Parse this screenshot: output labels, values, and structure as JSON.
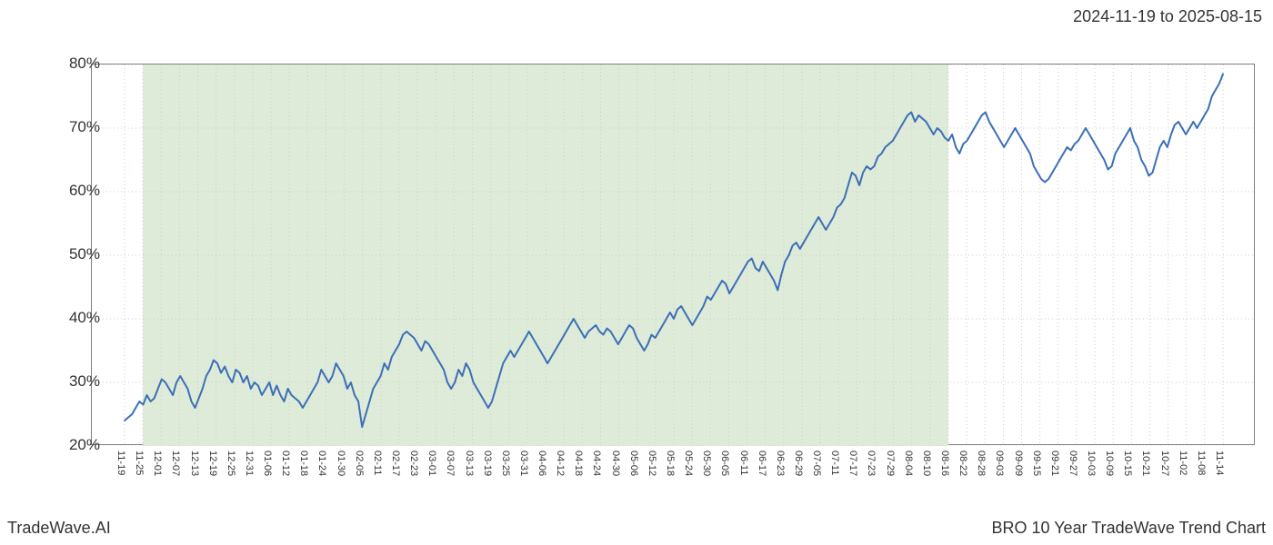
{
  "date_range": "2024-11-19 to 2025-08-15",
  "footer_left": "TradeWave.AI",
  "footer_right": "BRO 10 Year TradeWave Trend Chart",
  "chart": {
    "type": "line",
    "line_color": "#3b6fb6",
    "line_width": 2,
    "background_color": "#ffffff",
    "highlight_color": "#deebd9",
    "grid_color": "#cccccc",
    "border_color": "#808080",
    "text_color": "#333333",
    "ylim": [
      20,
      80
    ],
    "ytick_step": 10,
    "y_labels": [
      "20%",
      "30%",
      "40%",
      "50%",
      "60%",
      "70%",
      "80%"
    ],
    "x_labels": [
      "11-19",
      "11-25",
      "12-01",
      "12-07",
      "12-13",
      "12-19",
      "12-25",
      "12-31",
      "01-06",
      "01-12",
      "01-18",
      "01-24",
      "01-30",
      "02-05",
      "02-11",
      "02-17",
      "02-23",
      "03-01",
      "03-07",
      "03-13",
      "03-19",
      "03-25",
      "03-31",
      "04-06",
      "04-12",
      "04-18",
      "04-24",
      "04-30",
      "05-06",
      "05-12",
      "05-18",
      "05-24",
      "05-30",
      "06-05",
      "06-11",
      "06-17",
      "06-23",
      "06-29",
      "07-05",
      "07-11",
      "07-17",
      "07-23",
      "07-29",
      "08-04",
      "08-10",
      "08-16",
      "08-22",
      "08-28",
      "09-03",
      "09-09",
      "09-15",
      "09-21",
      "09-27",
      "10-03",
      "10-09",
      "10-15",
      "10-21",
      "10-27",
      "11-02",
      "11-08",
      "11-14"
    ],
    "highlight_start_index": 1,
    "highlight_end_index": 45,
    "plot_left_pad": 36,
    "plot_right_pad": 36,
    "values": [
      24,
      24.5,
      25,
      26,
      27,
      26.5,
      28,
      27,
      27.5,
      29,
      30.5,
      30,
      29,
      28,
      30,
      31,
      30,
      29,
      27,
      26,
      27.5,
      29,
      31,
      32,
      33.5,
      33,
      31.5,
      32.5,
      31,
      30,
      32,
      31.5,
      30,
      31,
      29,
      30,
      29.5,
      28,
      29,
      30,
      28,
      29.5,
      28,
      27,
      29,
      28,
      27.5,
      27,
      26,
      27,
      28,
      29,
      30,
      32,
      31,
      30,
      31,
      33,
      32,
      31,
      29,
      30,
      28,
      27,
      23,
      25,
      27,
      29,
      30,
      31,
      33,
      32,
      34,
      35,
      36,
      37.5,
      38,
      37.5,
      37,
      36,
      35,
      36.5,
      36,
      35,
      34,
      33,
      32,
      30,
      29,
      30,
      32,
      31,
      33,
      32,
      30,
      29,
      28,
      27,
      26,
      27,
      29,
      31,
      33,
      34,
      35,
      34,
      35,
      36,
      37,
      38,
      37,
      36,
      35,
      34,
      33,
      34,
      35,
      36,
      37,
      38,
      39,
      40,
      39,
      38,
      37,
      38,
      38.5,
      39,
      38,
      37.5,
      38.5,
      38,
      37,
      36,
      37,
      38,
      39,
      38.5,
      37,
      36,
      35,
      36,
      37.5,
      37,
      38,
      39,
      40,
      41,
      40,
      41.5,
      42,
      41,
      40,
      39,
      40,
      41,
      42,
      43.5,
      43,
      44,
      45,
      46,
      45.5,
      44,
      45,
      46,
      47,
      48,
      49,
      49.5,
      48,
      47.5,
      49,
      48,
      47,
      46,
      44.5,
      47,
      49,
      50,
      51.5,
      52,
      51,
      52,
      53,
      54,
      55,
      56,
      55,
      54,
      55,
      56,
      57.5,
      58,
      59,
      61,
      63,
      62.5,
      61,
      63,
      64,
      63.5,
      64,
      65.5,
      66,
      67,
      67.5,
      68,
      69,
      70,
      71,
      72,
      72.5,
      71,
      72,
      71.5,
      71,
      70,
      69,
      70,
      69.5,
      68.5,
      68,
      69,
      67,
      66,
      67.5,
      68,
      69,
      70,
      71,
      72,
      72.5,
      71,
      70,
      69,
      68,
      67,
      68,
      69,
      70,
      69,
      68,
      67,
      66,
      64,
      63,
      62,
      61.5,
      62,
      63,
      64,
      65,
      66,
      67,
      66.5,
      67.5,
      68,
      69,
      70,
      69,
      68,
      67,
      66,
      65,
      63.5,
      64,
      66,
      67,
      68,
      69,
      70,
      68,
      67,
      65,
      64,
      62.5,
      63,
      65,
      67,
      68,
      67,
      69,
      70.5,
      71,
      70,
      69,
      70,
      71,
      70,
      71,
      72,
      73,
      75,
      76,
      77,
      78.5
    ]
  }
}
